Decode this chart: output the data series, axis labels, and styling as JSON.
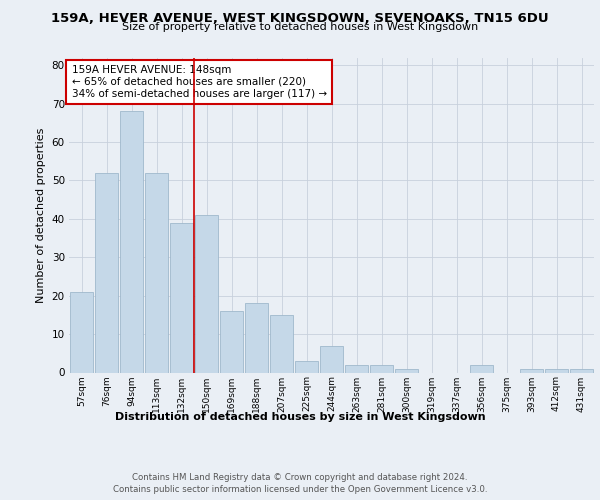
{
  "title1": "159A, HEVER AVENUE, WEST KINGSDOWN, SEVENOAKS, TN15 6DU",
  "title2": "Size of property relative to detached houses in West Kingsdown",
  "xlabel": "Distribution of detached houses by size in West Kingsdown",
  "ylabel": "Number of detached properties",
  "categories": [
    "57sqm",
    "76sqm",
    "94sqm",
    "113sqm",
    "132sqm",
    "150sqm",
    "169sqm",
    "188sqm",
    "207sqm",
    "225sqm",
    "244sqm",
    "263sqm",
    "281sqm",
    "300sqm",
    "319sqm",
    "337sqm",
    "356sqm",
    "375sqm",
    "393sqm",
    "412sqm",
    "431sqm"
  ],
  "values": [
    21,
    52,
    68,
    52,
    39,
    41,
    16,
    18,
    15,
    3,
    7,
    2,
    2,
    1,
    0,
    0,
    2,
    0,
    1,
    1,
    1
  ],
  "bar_color": "#c5d8e8",
  "bar_edge_color": "#a0b8cc",
  "vline_index": 5,
  "annotation_text": "159A HEVER AVENUE: 148sqm\n← 65% of detached houses are smaller (220)\n34% of semi-detached houses are larger (117) →",
  "annotation_box_color": "#ffffff",
  "annotation_box_edge_color": "#cc0000",
  "vline_color": "#cc0000",
  "ylim": [
    0,
    82
  ],
  "yticks": [
    0,
    10,
    20,
    30,
    40,
    50,
    60,
    70,
    80
  ],
  "grid_color": "#c8d0dc",
  "footer1": "Contains HM Land Registry data © Crown copyright and database right 2024.",
  "footer2": "Contains public sector information licensed under the Open Government Licence v3.0.",
  "bg_color": "#eaeff5",
  "plot_bg_color": "#eaeff5"
}
